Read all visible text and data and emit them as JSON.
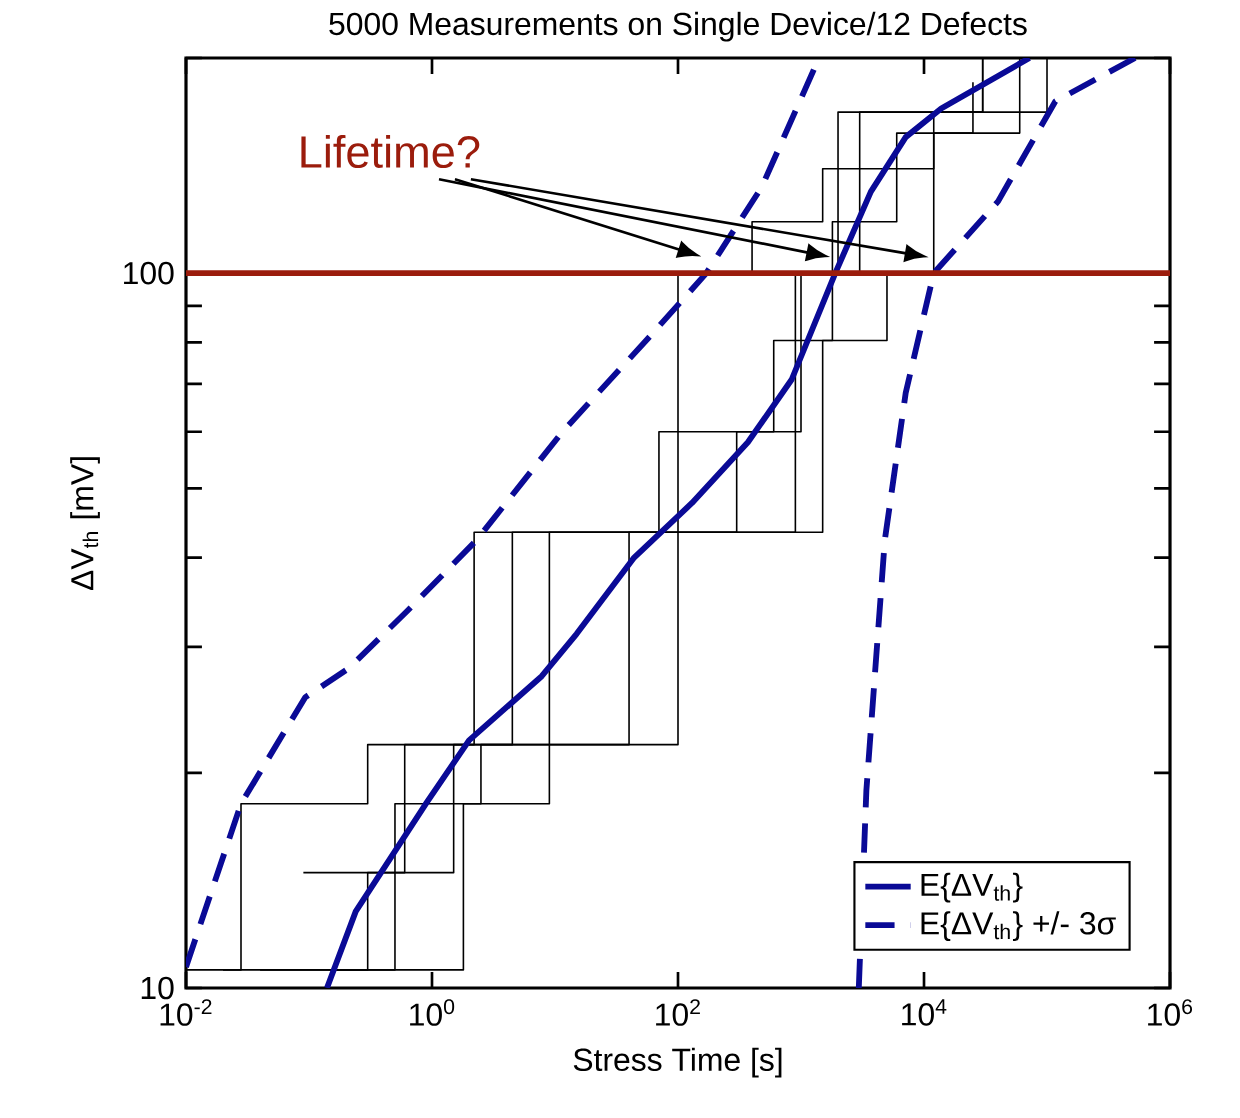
{
  "chart_data": {
    "type": "line",
    "title": "5000 Measurements on Single Device/12 Defects",
    "xlabel": "Stress Time [s]",
    "ylabel": "ΔV$_{th}$ [mV]",
    "log": "xy",
    "xlim": [
      0.01,
      1000000
    ],
    "ylim": [
      10,
      200
    ],
    "xticks": [
      {
        "value": 0.01,
        "label": "10$^{-2}$"
      },
      {
        "value": 1,
        "label": "10$^{0}$"
      },
      {
        "value": 100,
        "label": "10$^{2}$"
      },
      {
        "value": 10000,
        "label": "10$^{4}$"
      },
      {
        "value": 1000000,
        "label": "10$^{6}$"
      }
    ],
    "yticks": [
      10,
      {
        "value": 20,
        "label": null
      },
      {
        "value": 30,
        "label": null
      },
      {
        "value": 40,
        "label": null
      },
      {
        "value": 50,
        "label": null
      },
      {
        "value": 60,
        "label": null
      },
      {
        "value": 70,
        "label": null
      },
      {
        "value": 80,
        "label": null
      },
      {
        "value": 90,
        "label": null
      },
      100,
      {
        "value": 200,
        "label": null
      }
    ],
    "legend": "bottom right",
    "ref_lines": [
      {
        "axis": "y",
        "value": 100,
        "label": "Lifetime?",
        "color": "#9b1c0c"
      }
    ],
    "series": [
      {
        "type": "step",
        "color": "#000000",
        "x": [
          0.01,
          0.028,
          0.3,
          2.2,
          50,
          100,
          400,
          1500,
          3000,
          30000
        ],
        "values": [
          10.6,
          18.1,
          21.9,
          43.4,
          43.4,
          100,
          118,
          140,
          168,
          200
        ]
      },
      {
        "type": "step",
        "color": "#000000",
        "x": [
          0.09,
          0.6,
          4.5,
          70,
          600,
          1800,
          6000,
          60000
        ],
        "values": [
          14.5,
          21.9,
          43.4,
          60,
          80.5,
          118,
          157,
          200
        ]
      },
      {
        "type": "step",
        "color": "#000000",
        "x": [
          0.02,
          0.5,
          2.5,
          100,
          900,
          3000,
          12000,
          30000
        ],
        "values": [
          10.6,
          18.1,
          21.9,
          43.4,
          100,
          140,
          168,
          200
        ]
      },
      {
        "type": "step",
        "color": "#000000",
        "x": [
          0.04,
          0.3,
          1.5,
          40,
          300,
          1000,
          2000,
          100000
        ],
        "values": [
          10.6,
          14.5,
          21.9,
          43.4,
          60,
          100,
          168,
          200
        ]
      },
      {
        "type": "step",
        "color": "#000000",
        "x": [
          0.15,
          1.8,
          9,
          1500,
          5000,
          12000,
          25000
        ],
        "values": [
          10.6,
          18.1,
          43.4,
          80.5,
          100,
          157,
          185
        ]
      },
      {
        "name": "E{ΔV$_{th}$}",
        "color": "#0a0a96",
        "line_style": "solid",
        "x": [
          0.14,
          0.24,
          0.91,
          2.0,
          7.8,
          15,
          44,
          130,
          370,
          840,
          1900,
          3700,
          7100,
          13800,
          72000
        ],
        "values": [
          10,
          12.8,
          18.2,
          22.2,
          27.3,
          31.3,
          40,
          47.7,
          58,
          71,
          100,
          130,
          155,
          170,
          200
        ]
      },
      {
        "name": "E{ΔV$_{th}$} +/- 3σ",
        "color": "#0a0a96",
        "line_style": "dashed",
        "x": [
          0.01,
          0.028,
          0.093,
          0.21,
          0.62,
          2.3,
          11.5,
          57,
          170,
          480,
          1400
        ],
        "values": [
          10.7,
          18.1,
          25.5,
          28,
          33.6,
          42.3,
          60,
          81,
          100,
          132,
          200
        ]
      },
      {
        "color": "#0a0a96",
        "line_style": "dashed",
        "x": [
          2950,
          3400,
          4800,
          7100,
          12000,
          40000,
          117000,
          520000
        ],
        "values": [
          10,
          18.9,
          42.3,
          68,
          100,
          126,
          174,
          200
        ]
      }
    ]
  }
}
